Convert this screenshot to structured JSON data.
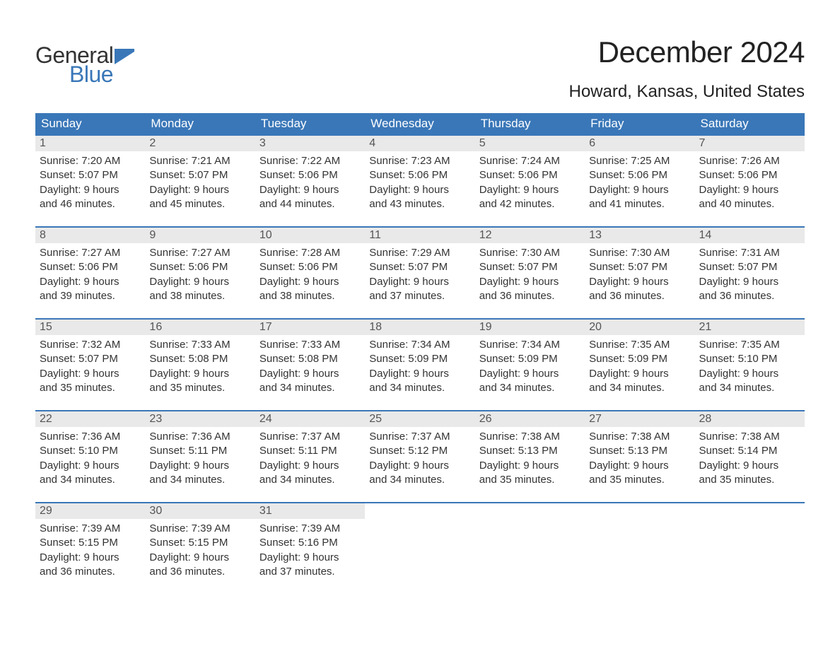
{
  "logo": {
    "text1": "General",
    "text2": "Blue",
    "shape_color": "#3a77b8"
  },
  "title": "December 2024",
  "location": "Howard, Kansas, United States",
  "colors": {
    "header_bg": "#3a77b8",
    "header_text": "#ffffff",
    "daynum_bg": "#e9e9e9",
    "border": "#3a77b8",
    "body_text": "#333333"
  },
  "day_names": [
    "Sunday",
    "Monday",
    "Tuesday",
    "Wednesday",
    "Thursday",
    "Friday",
    "Saturday"
  ],
  "weeks": [
    [
      {
        "num": "1",
        "sunrise": "Sunrise: 7:20 AM",
        "sunset": "Sunset: 5:07 PM",
        "day1": "Daylight: 9 hours",
        "day2": "and 46 minutes."
      },
      {
        "num": "2",
        "sunrise": "Sunrise: 7:21 AM",
        "sunset": "Sunset: 5:07 PM",
        "day1": "Daylight: 9 hours",
        "day2": "and 45 minutes."
      },
      {
        "num": "3",
        "sunrise": "Sunrise: 7:22 AM",
        "sunset": "Sunset: 5:06 PM",
        "day1": "Daylight: 9 hours",
        "day2": "and 44 minutes."
      },
      {
        "num": "4",
        "sunrise": "Sunrise: 7:23 AM",
        "sunset": "Sunset: 5:06 PM",
        "day1": "Daylight: 9 hours",
        "day2": "and 43 minutes."
      },
      {
        "num": "5",
        "sunrise": "Sunrise: 7:24 AM",
        "sunset": "Sunset: 5:06 PM",
        "day1": "Daylight: 9 hours",
        "day2": "and 42 minutes."
      },
      {
        "num": "6",
        "sunrise": "Sunrise: 7:25 AM",
        "sunset": "Sunset: 5:06 PM",
        "day1": "Daylight: 9 hours",
        "day2": "and 41 minutes."
      },
      {
        "num": "7",
        "sunrise": "Sunrise: 7:26 AM",
        "sunset": "Sunset: 5:06 PM",
        "day1": "Daylight: 9 hours",
        "day2": "and 40 minutes."
      }
    ],
    [
      {
        "num": "8",
        "sunrise": "Sunrise: 7:27 AM",
        "sunset": "Sunset: 5:06 PM",
        "day1": "Daylight: 9 hours",
        "day2": "and 39 minutes."
      },
      {
        "num": "9",
        "sunrise": "Sunrise: 7:27 AM",
        "sunset": "Sunset: 5:06 PM",
        "day1": "Daylight: 9 hours",
        "day2": "and 38 minutes."
      },
      {
        "num": "10",
        "sunrise": "Sunrise: 7:28 AM",
        "sunset": "Sunset: 5:06 PM",
        "day1": "Daylight: 9 hours",
        "day2": "and 38 minutes."
      },
      {
        "num": "11",
        "sunrise": "Sunrise: 7:29 AM",
        "sunset": "Sunset: 5:07 PM",
        "day1": "Daylight: 9 hours",
        "day2": "and 37 minutes."
      },
      {
        "num": "12",
        "sunrise": "Sunrise: 7:30 AM",
        "sunset": "Sunset: 5:07 PM",
        "day1": "Daylight: 9 hours",
        "day2": "and 36 minutes."
      },
      {
        "num": "13",
        "sunrise": "Sunrise: 7:30 AM",
        "sunset": "Sunset: 5:07 PM",
        "day1": "Daylight: 9 hours",
        "day2": "and 36 minutes."
      },
      {
        "num": "14",
        "sunrise": "Sunrise: 7:31 AM",
        "sunset": "Sunset: 5:07 PM",
        "day1": "Daylight: 9 hours",
        "day2": "and 36 minutes."
      }
    ],
    [
      {
        "num": "15",
        "sunrise": "Sunrise: 7:32 AM",
        "sunset": "Sunset: 5:07 PM",
        "day1": "Daylight: 9 hours",
        "day2": "and 35 minutes."
      },
      {
        "num": "16",
        "sunrise": "Sunrise: 7:33 AM",
        "sunset": "Sunset: 5:08 PM",
        "day1": "Daylight: 9 hours",
        "day2": "and 35 minutes."
      },
      {
        "num": "17",
        "sunrise": "Sunrise: 7:33 AM",
        "sunset": "Sunset: 5:08 PM",
        "day1": "Daylight: 9 hours",
        "day2": "and 34 minutes."
      },
      {
        "num": "18",
        "sunrise": "Sunrise: 7:34 AM",
        "sunset": "Sunset: 5:09 PM",
        "day1": "Daylight: 9 hours",
        "day2": "and 34 minutes."
      },
      {
        "num": "19",
        "sunrise": "Sunrise: 7:34 AM",
        "sunset": "Sunset: 5:09 PM",
        "day1": "Daylight: 9 hours",
        "day2": "and 34 minutes."
      },
      {
        "num": "20",
        "sunrise": "Sunrise: 7:35 AM",
        "sunset": "Sunset: 5:09 PM",
        "day1": "Daylight: 9 hours",
        "day2": "and 34 minutes."
      },
      {
        "num": "21",
        "sunrise": "Sunrise: 7:35 AM",
        "sunset": "Sunset: 5:10 PM",
        "day1": "Daylight: 9 hours",
        "day2": "and 34 minutes."
      }
    ],
    [
      {
        "num": "22",
        "sunrise": "Sunrise: 7:36 AM",
        "sunset": "Sunset: 5:10 PM",
        "day1": "Daylight: 9 hours",
        "day2": "and 34 minutes."
      },
      {
        "num": "23",
        "sunrise": "Sunrise: 7:36 AM",
        "sunset": "Sunset: 5:11 PM",
        "day1": "Daylight: 9 hours",
        "day2": "and 34 minutes."
      },
      {
        "num": "24",
        "sunrise": "Sunrise: 7:37 AM",
        "sunset": "Sunset: 5:11 PM",
        "day1": "Daylight: 9 hours",
        "day2": "and 34 minutes."
      },
      {
        "num": "25",
        "sunrise": "Sunrise: 7:37 AM",
        "sunset": "Sunset: 5:12 PM",
        "day1": "Daylight: 9 hours",
        "day2": "and 34 minutes."
      },
      {
        "num": "26",
        "sunrise": "Sunrise: 7:38 AM",
        "sunset": "Sunset: 5:13 PM",
        "day1": "Daylight: 9 hours",
        "day2": "and 35 minutes."
      },
      {
        "num": "27",
        "sunrise": "Sunrise: 7:38 AM",
        "sunset": "Sunset: 5:13 PM",
        "day1": "Daylight: 9 hours",
        "day2": "and 35 minutes."
      },
      {
        "num": "28",
        "sunrise": "Sunrise: 7:38 AM",
        "sunset": "Sunset: 5:14 PM",
        "day1": "Daylight: 9 hours",
        "day2": "and 35 minutes."
      }
    ],
    [
      {
        "num": "29",
        "sunrise": "Sunrise: 7:39 AM",
        "sunset": "Sunset: 5:15 PM",
        "day1": "Daylight: 9 hours",
        "day2": "and 36 minutes."
      },
      {
        "num": "30",
        "sunrise": "Sunrise: 7:39 AM",
        "sunset": "Sunset: 5:15 PM",
        "day1": "Daylight: 9 hours",
        "day2": "and 36 minutes."
      },
      {
        "num": "31",
        "sunrise": "Sunrise: 7:39 AM",
        "sunset": "Sunset: 5:16 PM",
        "day1": "Daylight: 9 hours",
        "day2": "and 37 minutes."
      },
      {
        "num": "",
        "sunrise": "",
        "sunset": "",
        "day1": "",
        "day2": ""
      },
      {
        "num": "",
        "sunrise": "",
        "sunset": "",
        "day1": "",
        "day2": ""
      },
      {
        "num": "",
        "sunrise": "",
        "sunset": "",
        "day1": "",
        "day2": ""
      },
      {
        "num": "",
        "sunrise": "",
        "sunset": "",
        "day1": "",
        "day2": ""
      }
    ]
  ]
}
